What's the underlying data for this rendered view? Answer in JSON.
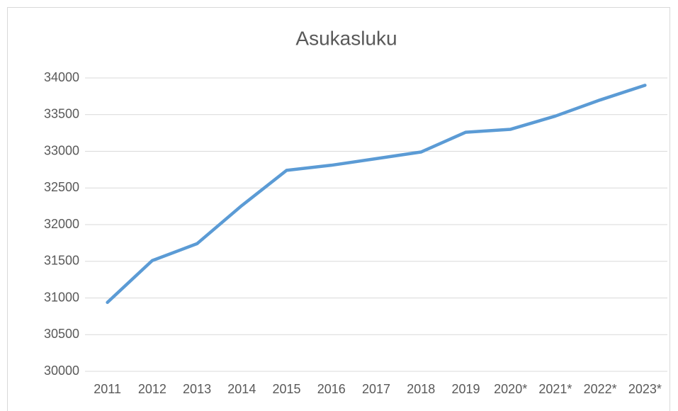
{
  "chart_data": {
    "type": "line",
    "title": "Asukasluku",
    "categories": [
      "2011",
      "2012",
      "2013",
      "2014",
      "2015",
      "2016",
      "2017",
      "2018",
      "2019",
      "2020*",
      "2021*",
      "2022*",
      "2023*"
    ],
    "series": [
      {
        "name": "Asukasluku",
        "color": "#5b9bd5",
        "values": [
          30940,
          31510,
          31740,
          32260,
          32740,
          32810,
          32900,
          32990,
          33260,
          33300,
          33480,
          33700,
          33900
        ]
      }
    ],
    "ylim": [
      30000,
      34000
    ],
    "yticks": [
      30000,
      30500,
      31000,
      31500,
      32000,
      32500,
      33000,
      33500,
      34000
    ],
    "grid": true
  }
}
